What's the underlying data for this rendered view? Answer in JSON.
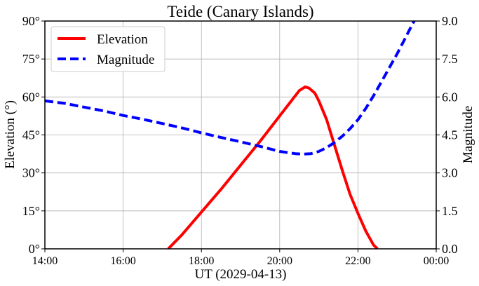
{
  "chart_data": {
    "type": "line",
    "title": "Teide (Canary Islands)",
    "xlabel": "UT (2029-04-13)",
    "ylabel_left": "Elevation (°)",
    "ylabel_right": "Magnitude",
    "x_tick_labels": [
      "14:00",
      "16:00",
      "18:00",
      "20:00",
      "22:00",
      "00:00"
    ],
    "y_left_tick_labels": [
      "0°",
      "15°",
      "30°",
      "45°",
      "60°",
      "75°",
      "90°"
    ],
    "y_right_tick_labels": [
      "0.0",
      "1.5",
      "3.0",
      "4.5",
      "6.0",
      "7.5",
      "9.0"
    ],
    "xlim_hours": [
      14,
      24
    ],
    "ylim_left": [
      0,
      90
    ],
    "ylim_right": [
      0,
      9
    ],
    "grid": true,
    "legend_position": "top-left",
    "series": [
      {
        "name": "Elevation",
        "axis": "left",
        "color": "#ff0000",
        "style": "solid",
        "x_hours": [
          17.15,
          17.5,
          18.0,
          18.5,
          19.0,
          19.5,
          20.0,
          20.3,
          20.5,
          20.65,
          20.75,
          20.9,
          21.0,
          21.2,
          21.4,
          21.6,
          21.8,
          22.0,
          22.2,
          22.4,
          22.5
        ],
        "y": [
          0,
          5.5,
          14.5,
          23.5,
          33,
          42.5,
          52.5,
          58.5,
          62.5,
          64,
          63.5,
          61.5,
          58.5,
          51,
          41,
          31,
          21.5,
          14,
          7,
          1.5,
          0
        ]
      },
      {
        "name": "Magnitude",
        "axis": "right",
        "color": "#0000ff",
        "style": "dashed",
        "x_hours": [
          14.0,
          14.5,
          15.0,
          15.5,
          16.0,
          16.5,
          17.0,
          17.5,
          18.0,
          18.5,
          19.0,
          19.5,
          20.0,
          20.4,
          20.6,
          20.8,
          21.0,
          21.2,
          21.4,
          21.6,
          21.8,
          22.0,
          22.2,
          22.4,
          22.6,
          22.8,
          23.0,
          23.2,
          23.4,
          23.55
        ],
        "y": [
          5.85,
          5.75,
          5.6,
          5.45,
          5.27,
          5.12,
          4.95,
          4.78,
          4.58,
          4.4,
          4.23,
          4.05,
          3.85,
          3.76,
          3.74,
          3.76,
          3.85,
          4.0,
          4.2,
          4.45,
          4.75,
          5.1,
          5.55,
          6.05,
          6.6,
          7.15,
          7.7,
          8.3,
          8.9,
          9.3
        ]
      }
    ]
  }
}
